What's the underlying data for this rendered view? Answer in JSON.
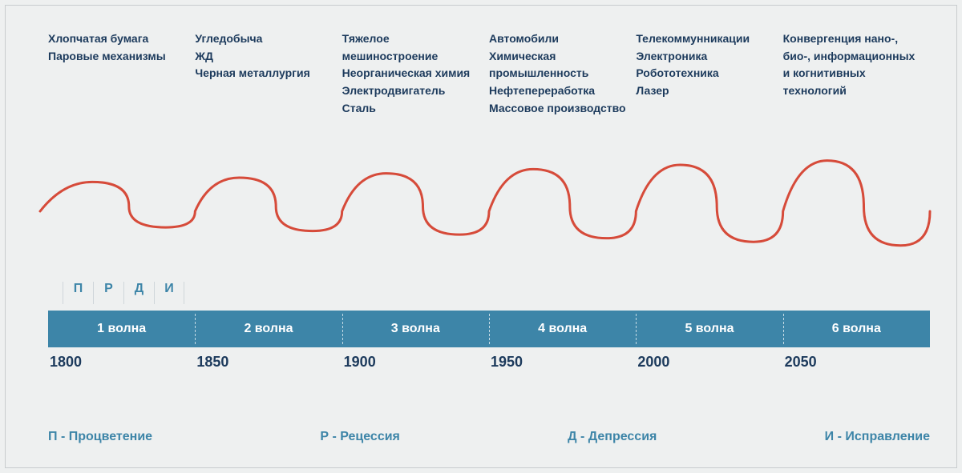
{
  "colors": {
    "background": "#eef0f0",
    "text_dark": "#1c3a5c",
    "accent": "#3d85a8",
    "wave": "#d64b3a",
    "frame": "#c8ccce",
    "dash": "rgba(255,255,255,0.7)"
  },
  "wave": {
    "stroke_width": 3,
    "amplitude_start": 28,
    "amplitude_end": 60,
    "cycles": 6,
    "viewbox_w": 1100,
    "viewbox_h": 160
  },
  "tech_columns": [
    [
      "Хлопчатая бумага",
      "Паровые механизмы"
    ],
    [
      "Угледобыча",
      "ЖД",
      "Черная металлургия"
    ],
    [
      "Тяжелое мешиностроение",
      "Неорганическая химия",
      "Электродвигатель",
      "Сталь"
    ],
    [
      "Автомобили",
      "Химическая промышленность",
      "Нефтепереработка",
      "Массовое производство"
    ],
    [
      "Телекоммунникации",
      "Электроника",
      "Робототехника",
      "Лазер"
    ],
    [
      "Конвергенция нано-, био-, информационных и когнитивных технологий"
    ]
  ],
  "phase_letters": [
    "П",
    "Р",
    "Д",
    "И"
  ],
  "waves": [
    {
      "label": "1 волна",
      "year": "1800"
    },
    {
      "label": "2 волна",
      "year": "1850"
    },
    {
      "label": "3 волна",
      "year": "1900"
    },
    {
      "label": "4 волна",
      "year": "1950"
    },
    {
      "label": "5 волна",
      "year": "2000"
    },
    {
      "label": "6 волна",
      "year": "2050"
    }
  ],
  "legend": [
    "П - Процветение",
    "Р - Рецессия",
    "Д - Депрессия",
    "И - Исправление"
  ]
}
